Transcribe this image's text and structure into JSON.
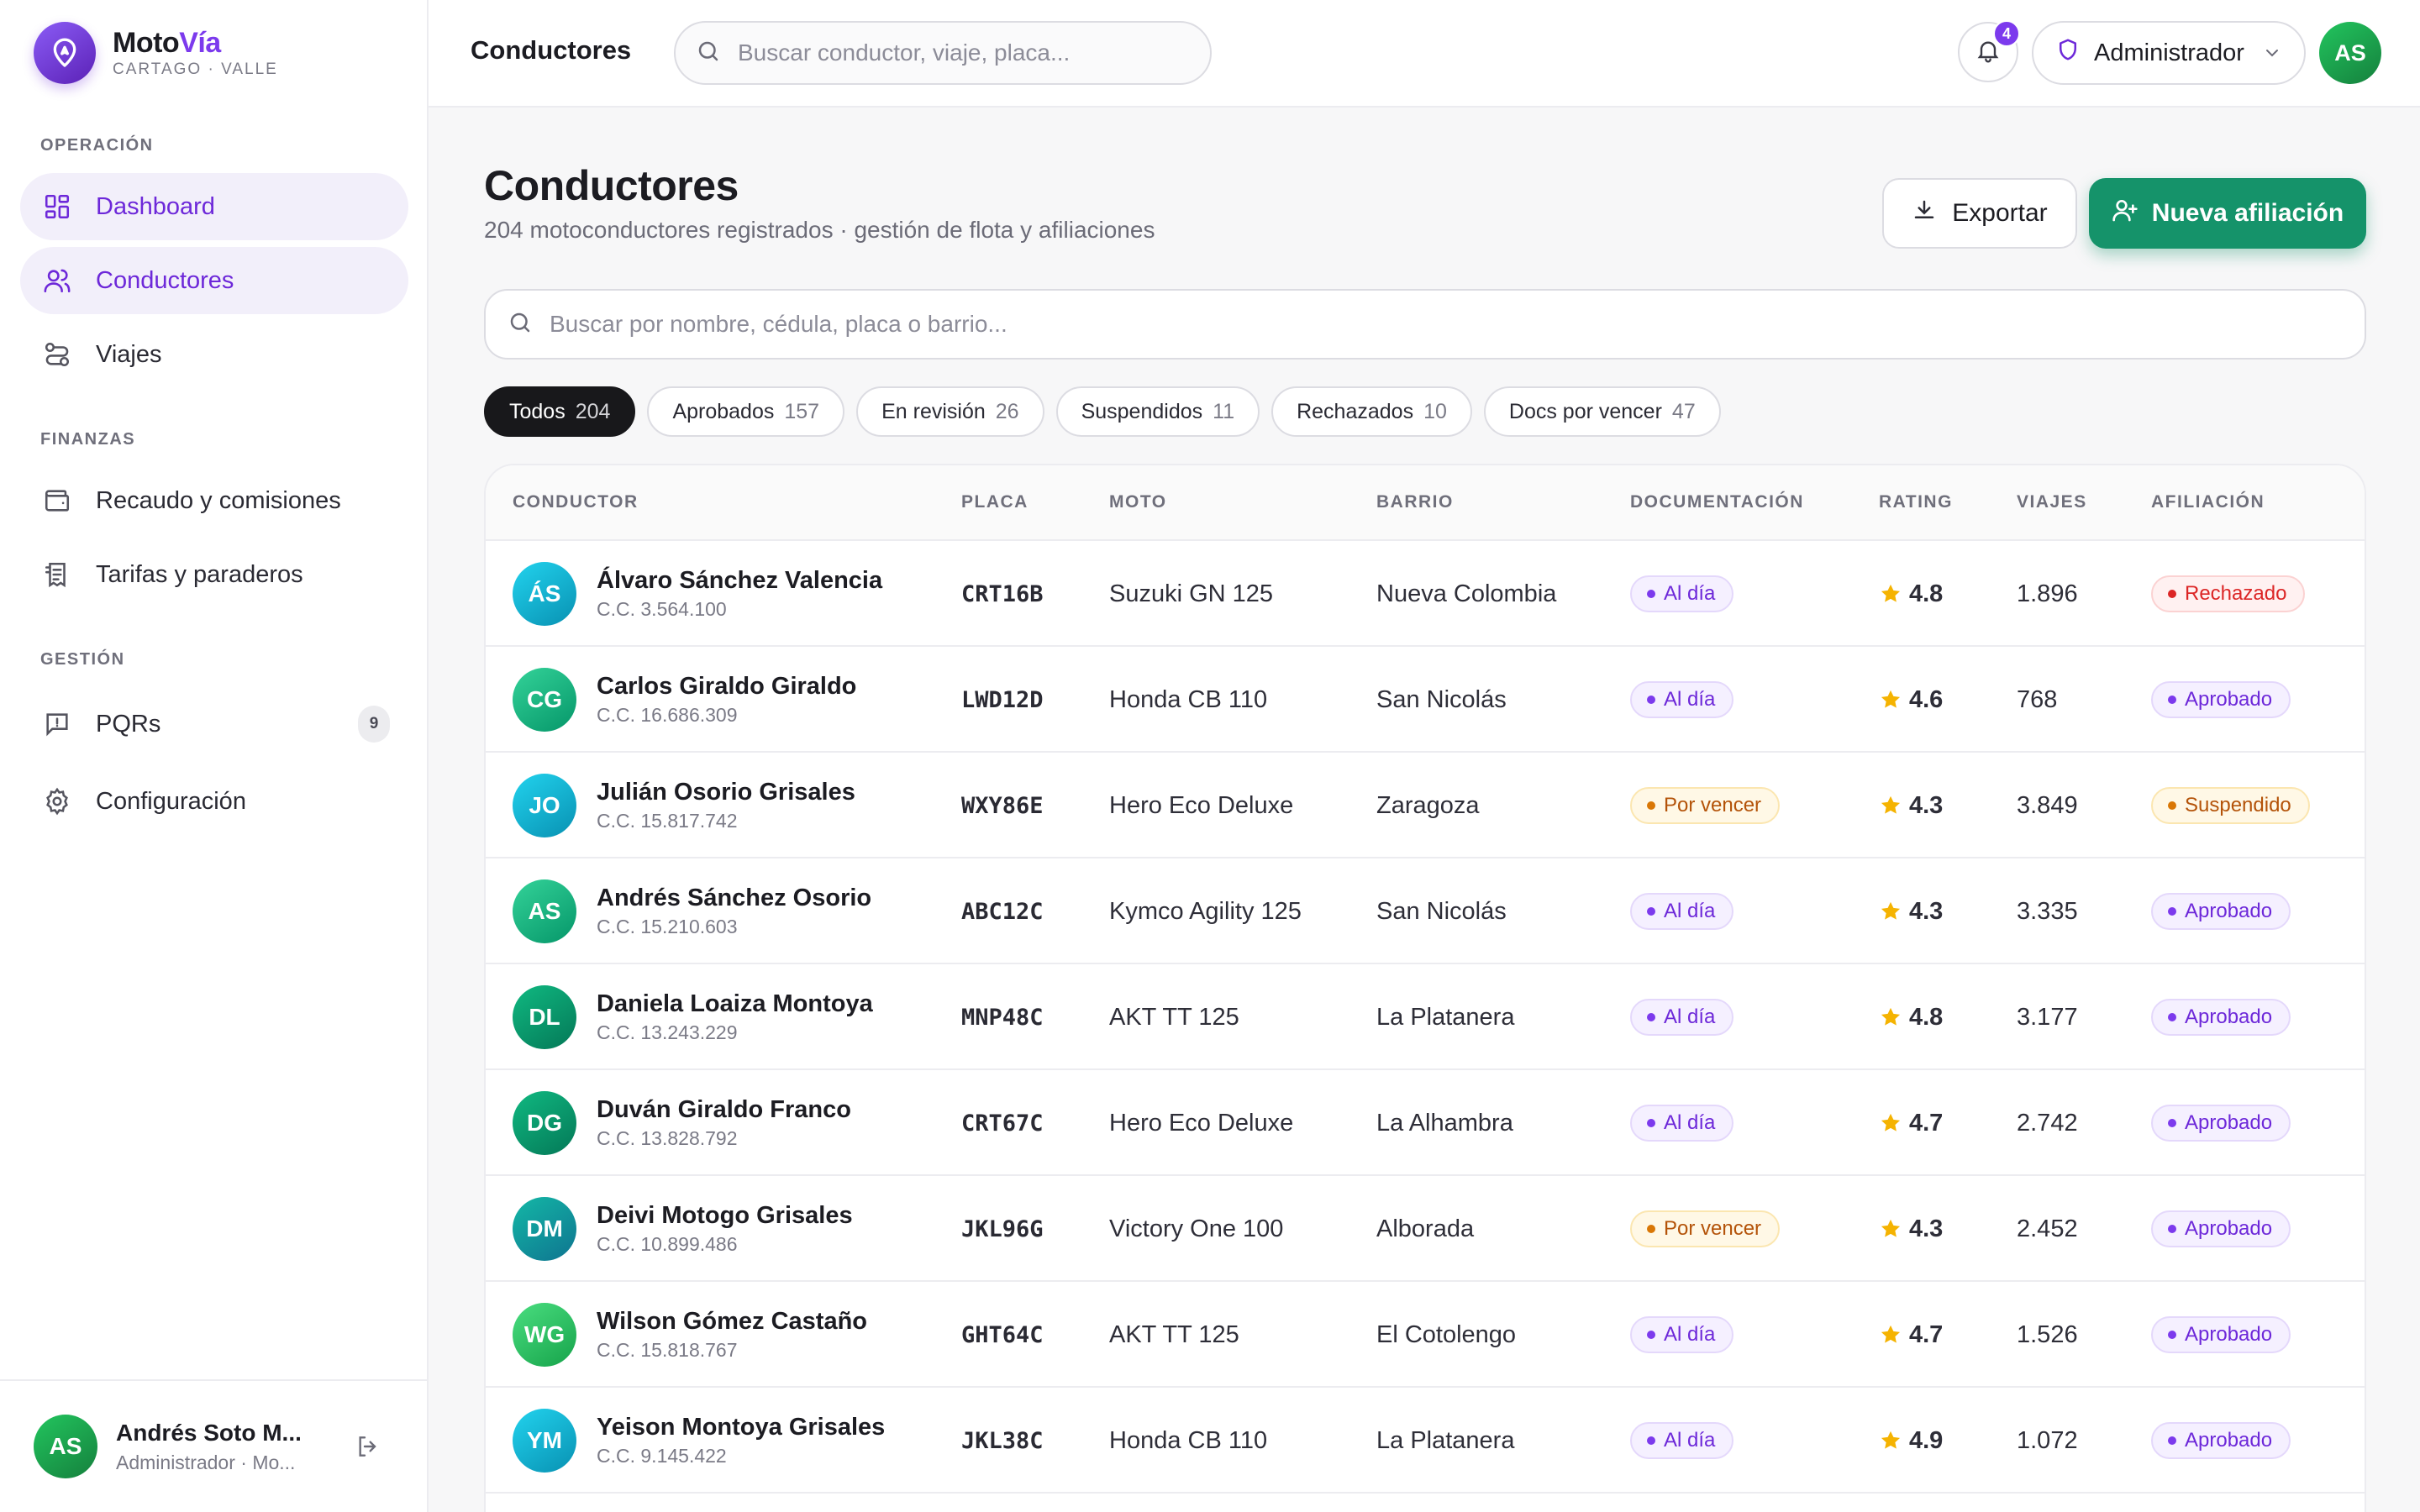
{
  "brand": {
    "name_main": "Moto",
    "name_accent": "Vía",
    "subtitle": "CARTAGO · VALLE"
  },
  "sidebar": {
    "sections": [
      {
        "label": "OPERACIÓN"
      },
      {
        "label": "FINANZAS"
      },
      {
        "label": "GESTIÓN"
      }
    ],
    "items": [
      {
        "label": "Dashboard",
        "icon": "grid-icon"
      },
      {
        "label": "Conductores",
        "icon": "users-icon"
      },
      {
        "label": "Viajes",
        "icon": "route-icon"
      },
      {
        "label": "Recaudo y comisiones",
        "icon": "wallet-icon"
      },
      {
        "label": "Tarifas y paraderos",
        "icon": "receipt-icon"
      },
      {
        "label": "PQRs",
        "icon": "message-alert-icon",
        "badge": "9"
      },
      {
        "label": "Configuración",
        "icon": "gear-icon"
      }
    ],
    "user": {
      "initials": "AS",
      "name": "Andrés Soto M...",
      "role": "Administrador · Mo..."
    }
  },
  "topbar": {
    "title": "Conductores",
    "search_placeholder": "Buscar conductor, viaje, placa...",
    "notifications": "4",
    "role": "Administrador",
    "avatar": "AS"
  },
  "page": {
    "title": "Conductores",
    "subtitle": "204 motoconductores registrados · gestión de flota y afiliaciones",
    "export_label": "Exportar",
    "new_label": "Nueva afiliación",
    "search_placeholder": "Buscar por nombre, cédula, placa o barrio..."
  },
  "filters": [
    {
      "label": "Todos",
      "count": "204",
      "active": true
    },
    {
      "label": "Aprobados",
      "count": "157"
    },
    {
      "label": "En revisión",
      "count": "26"
    },
    {
      "label": "Suspendidos",
      "count": "11"
    },
    {
      "label": "Rechazados",
      "count": "10"
    },
    {
      "label": "Docs por vencer",
      "count": "47"
    }
  ],
  "table": {
    "headers": [
      "CONDUCTOR",
      "PLACA",
      "MOTO",
      "BARRIO",
      "DOCUMENTACIÓN",
      "RATING",
      "VIAJES",
      "AFILIACIÓN"
    ],
    "rows": [
      {
        "initials": "ÁS",
        "color": "teal",
        "name": "Álvaro Sánchez Valencia",
        "cc": "C.C. 3.564.100",
        "plate": "CRT16B",
        "moto": "Suzuki GN 125",
        "barrio": "Nueva Colombia",
        "docs": "Al día",
        "docs_tone": "violet",
        "rating": "4.8",
        "trips": "1.896",
        "status": "Rechazado",
        "status_tone": "red"
      },
      {
        "initials": "CG",
        "color": "green",
        "name": "Carlos Giraldo Giraldo",
        "cc": "C.C. 16.686.309",
        "plate": "LWD12D",
        "moto": "Honda CB 110",
        "barrio": "San Nicolás",
        "docs": "Al día",
        "docs_tone": "violet",
        "rating": "4.6",
        "trips": "768",
        "status": "Aprobado",
        "status_tone": "violet"
      },
      {
        "initials": "JO",
        "color": "teal",
        "name": "Julián Osorio Grisales",
        "cc": "C.C. 15.817.742",
        "plate": "WXY86E",
        "moto": "Hero Eco Deluxe",
        "barrio": "Zaragoza",
        "docs": "Por vencer",
        "docs_tone": "amber",
        "rating": "4.3",
        "trips": "3.849",
        "status": "Suspendido",
        "status_tone": "amber"
      },
      {
        "initials": "AS",
        "color": "green",
        "name": "Andrés Sánchez Osorio",
        "cc": "C.C. 15.210.603",
        "plate": "ABC12C",
        "moto": "Kymco Agility 125",
        "barrio": "San Nicolás",
        "docs": "Al día",
        "docs_tone": "violet",
        "rating": "4.3",
        "trips": "3.335",
        "status": "Aprobado",
        "status_tone": "violet"
      },
      {
        "initials": "DL",
        "color": "jade",
        "name": "Daniela Loaiza Montoya",
        "cc": "C.C. 13.243.229",
        "plate": "MNP48C",
        "moto": "AKT TT 125",
        "barrio": "La Platanera",
        "docs": "Al día",
        "docs_tone": "violet",
        "rating": "4.8",
        "trips": "3.177",
        "status": "Aprobado",
        "status_tone": "violet"
      },
      {
        "initials": "DG",
        "color": "jade",
        "name": "Duván Giraldo Franco",
        "cc": "C.C. 13.828.792",
        "plate": "CRT67C",
        "moto": "Hero Eco Deluxe",
        "barrio": "La Alhambra",
        "docs": "Al día",
        "docs_tone": "violet",
        "rating": "4.7",
        "trips": "2.742",
        "status": "Aprobado",
        "status_tone": "violet"
      },
      {
        "initials": "DM",
        "color": "ocean",
        "name": "Deivi Motogo Grisales",
        "cc": "C.C. 10.899.486",
        "plate": "JKL96G",
        "moto": "Victory One 100",
        "barrio": "Alborada",
        "docs": "Por vencer",
        "docs_tone": "amber",
        "rating": "4.3",
        "trips": "2.452",
        "status": "Aprobado",
        "status_tone": "violet"
      },
      {
        "initials": "WG",
        "color": "lime",
        "name": "Wilson Gómez Castaño",
        "cc": "C.C. 15.818.767",
        "plate": "GHT64C",
        "moto": "AKT TT 125",
        "barrio": "El Cotolengo",
        "docs": "Al día",
        "docs_tone": "violet",
        "rating": "4.7",
        "trips": "1.526",
        "status": "Aprobado",
        "status_tone": "violet"
      },
      {
        "initials": "YM",
        "color": "teal",
        "name": "Yeison Montoya Grisales",
        "cc": "C.C. 9.145.422",
        "plate": "JKL38C",
        "moto": "Honda CB 110",
        "barrio": "La Platanera",
        "docs": "Al día",
        "docs_tone": "violet",
        "rating": "4.9",
        "trips": "1.072",
        "status": "Aprobado",
        "status_tone": "violet"
      }
    ]
  },
  "colors": {
    "accent": "#7c3aed",
    "primary_button": "#15936a",
    "star": "#f5b301"
  }
}
